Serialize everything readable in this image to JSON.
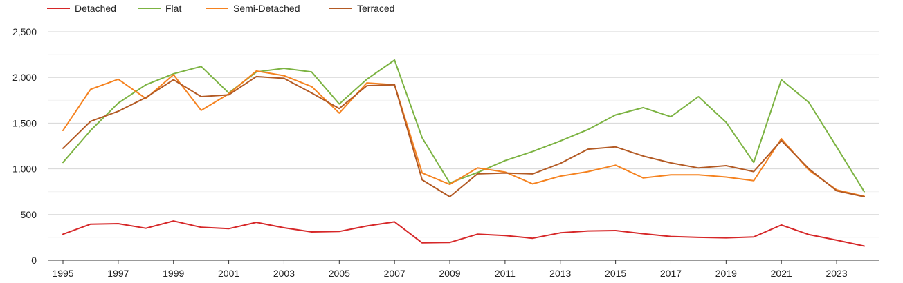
{
  "chart_data": {
    "type": "line",
    "x": [
      1995,
      1996,
      1997,
      1998,
      1999,
      2000,
      2001,
      2002,
      2003,
      2004,
      2005,
      2006,
      2007,
      2008,
      2009,
      2010,
      2011,
      2012,
      2013,
      2014,
      2015,
      2016,
      2017,
      2018,
      2019,
      2020,
      2021,
      2022,
      2023,
      2024
    ],
    "x_tick_labels": [
      "1995",
      "1997",
      "1999",
      "2001",
      "2003",
      "2005",
      "2007",
      "2009",
      "2011",
      "2013",
      "2015",
      "2017",
      "2019",
      "2021",
      "2023"
    ],
    "y_ticks": [
      0,
      500,
      1000,
      1500,
      2000,
      2500
    ],
    "y_tick_labels": [
      "0",
      "500",
      "1,000",
      "1,500",
      "2,000",
      "2,500"
    ],
    "ylim": [
      0,
      2500
    ],
    "grid": true,
    "legend_position": "top-left",
    "series": [
      {
        "name": "Detached",
        "color": "#d62728",
        "values": [
          285,
          395,
          400,
          350,
          430,
          360,
          345,
          415,
          355,
          310,
          315,
          375,
          420,
          190,
          195,
          285,
          270,
          240,
          300,
          320,
          325,
          290,
          260,
          250,
          245,
          255,
          385,
          280,
          220,
          155
        ]
      },
      {
        "name": "Flat",
        "color": "#7cb342",
        "values": [
          1070,
          1420,
          1720,
          1920,
          2040,
          2120,
          1830,
          2060,
          2100,
          2060,
          1710,
          1980,
          2190,
          1340,
          845,
          960,
          1090,
          1190,
          1305,
          1430,
          1590,
          1670,
          1570,
          1790,
          1510,
          1070,
          1975,
          1725,
          1240,
          750
        ]
      },
      {
        "name": "Semi-Detached",
        "color": "#f5821f",
        "values": [
          1420,
          1870,
          1980,
          1770,
          2030,
          1640,
          1820,
          2070,
          2020,
          1900,
          1610,
          1940,
          1920,
          955,
          830,
          1010,
          965,
          835,
          920,
          970,
          1040,
          900,
          935,
          935,
          910,
          870,
          1330,
          985,
          770,
          700
        ]
      },
      {
        "name": "Terraced",
        "color": "#b35a24",
        "values": [
          1225,
          1520,
          1630,
          1780,
          1975,
          1790,
          1810,
          2010,
          1990,
          1830,
          1660,
          1910,
          1920,
          880,
          695,
          945,
          955,
          945,
          1060,
          1215,
          1240,
          1140,
          1065,
          1010,
          1035,
          970,
          1310,
          1000,
          760,
          695
        ]
      }
    ]
  }
}
